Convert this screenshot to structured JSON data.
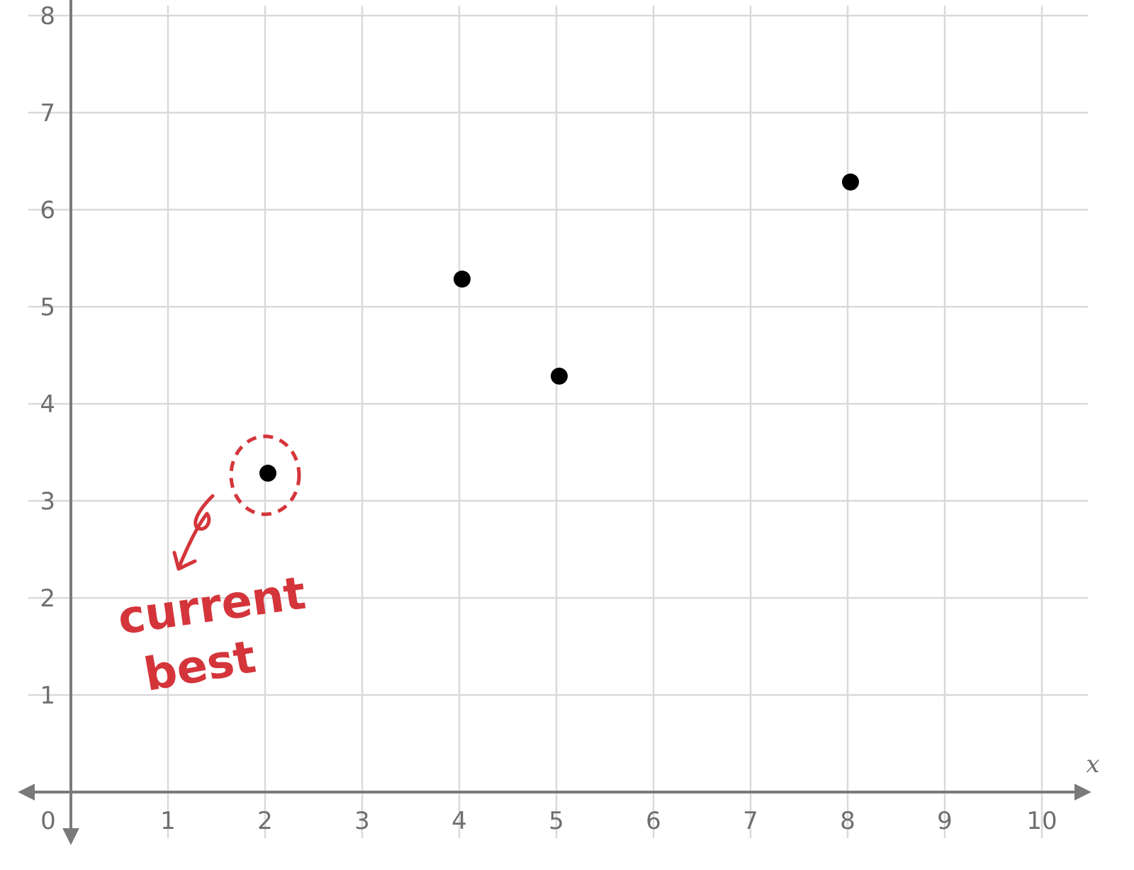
{
  "chart_data": {
    "type": "scatter",
    "title": "",
    "xlabel": "x",
    "ylabel": "",
    "xlim": [
      0,
      10
    ],
    "ylim": [
      0,
      8
    ],
    "grid": true,
    "x_ticks": [
      "1",
      "2",
      "3",
      "4",
      "5",
      "6",
      "7",
      "8",
      "9",
      "10"
    ],
    "y_ticks": [
      "1",
      "2",
      "3",
      "4",
      "5",
      "6",
      "7",
      "8"
    ],
    "origin_label": "0",
    "points": [
      {
        "x": 2,
        "y": 3.3
      },
      {
        "x": 4,
        "y": 5.3
      },
      {
        "x": 5,
        "y": 4.3
      },
      {
        "x": 8,
        "y": 6.3
      }
    ],
    "annotation": {
      "text_lines": [
        "current",
        "best"
      ],
      "target_point_index": 0,
      "color": "#d4353b"
    },
    "colors": {
      "grid": "#d9d9d9",
      "axis": "#7a7a7a",
      "point": "#000000"
    }
  }
}
